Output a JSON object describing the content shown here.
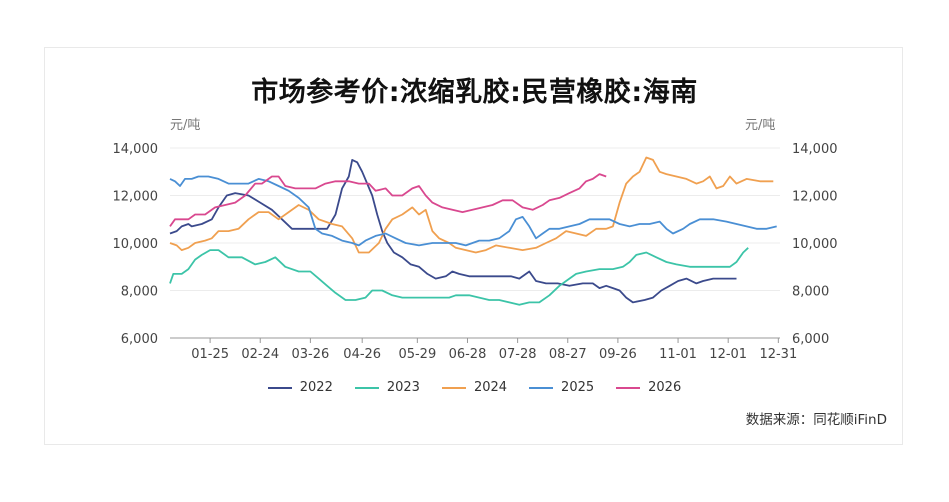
{
  "title": "市场参考价:浓缩乳胶:民营橡胶:海南",
  "source": "数据来源：同花顺iFinD",
  "chart_data": {
    "type": "line",
    "title": "市场参考价:浓缩乳胶:民营橡胶:海南",
    "y_unit_left": "元/吨",
    "y_unit_right": "元/吨",
    "ylim": [
      6000,
      14000
    ],
    "y_ticks": [
      "6,000",
      "8,000",
      "10,000",
      "12,000",
      "14,000"
    ],
    "y_tick_values": [
      6000,
      8000,
      10000,
      12000,
      14000
    ],
    "x_ticks": [
      "01-25",
      "02-24",
      "03-26",
      "04-26",
      "05-29",
      "06-28",
      "07-28",
      "08-27",
      "09-26",
      "11-01",
      "12-01",
      "12-31"
    ],
    "x_tick_days": [
      25,
      55,
      85,
      116,
      149,
      179,
      209,
      239,
      269,
      305,
      335,
      365
    ],
    "x_domain_days": [
      1,
      366
    ],
    "grid": "horizontal",
    "legend_position": "bottom",
    "series": [
      {
        "name": "2022",
        "color": "#3b4a8c",
        "points": [
          [
            1,
            10400
          ],
          [
            5,
            10500
          ],
          [
            8,
            10700
          ],
          [
            12,
            10800
          ],
          [
            14,
            10700
          ],
          [
            20,
            10800
          ],
          [
            26,
            11000
          ],
          [
            30,
            11500
          ],
          [
            35,
            12000
          ],
          [
            40,
            12100
          ],
          [
            48,
            12000
          ],
          [
            55,
            11700
          ],
          [
            62,
            11400
          ],
          [
            68,
            11000
          ],
          [
            74,
            10600
          ],
          [
            82,
            10600
          ],
          [
            88,
            10600
          ],
          [
            95,
            10600
          ],
          [
            100,
            11200
          ],
          [
            104,
            12300
          ],
          [
            108,
            12800
          ],
          [
            110,
            13500
          ],
          [
            113,
            13400
          ],
          [
            116,
            13000
          ],
          [
            119,
            12500
          ],
          [
            122,
            12000
          ],
          [
            125,
            11200
          ],
          [
            128,
            10500
          ],
          [
            131,
            10000
          ],
          [
            135,
            9600
          ],
          [
            140,
            9400
          ],
          [
            145,
            9100
          ],
          [
            150,
            9000
          ],
          [
            155,
            8700
          ],
          [
            160,
            8500
          ],
          [
            166,
            8600
          ],
          [
            170,
            8800
          ],
          [
            174,
            8700
          ],
          [
            180,
            8600
          ],
          [
            188,
            8600
          ],
          [
            195,
            8600
          ],
          [
            205,
            8600
          ],
          [
            210,
            8500
          ],
          [
            216,
            8800
          ],
          [
            220,
            8400
          ],
          [
            226,
            8300
          ],
          [
            233,
            8300
          ],
          [
            240,
            8200
          ],
          [
            248,
            8300
          ],
          [
            254,
            8300
          ],
          [
            258,
            8100
          ],
          [
            262,
            8200
          ],
          [
            266,
            8100
          ],
          [
            270,
            8000
          ],
          [
            274,
            7700
          ],
          [
            278,
            7500
          ],
          [
            285,
            7600
          ],
          [
            290,
            7700
          ],
          [
            295,
            8000
          ],
          [
            300,
            8200
          ],
          [
            305,
            8400
          ],
          [
            310,
            8500
          ],
          [
            316,
            8300
          ],
          [
            320,
            8400
          ],
          [
            326,
            8500
          ],
          [
            332,
            8500
          ],
          [
            340,
            8500
          ]
        ]
      },
      {
        "name": "2023",
        "color": "#3cc4a8",
        "points": [
          [
            1,
            8300
          ],
          [
            3,
            8700
          ],
          [
            8,
            8700
          ],
          [
            12,
            8900
          ],
          [
            16,
            9300
          ],
          [
            20,
            9500
          ],
          [
            25,
            9700
          ],
          [
            30,
            9700
          ],
          [
            36,
            9400
          ],
          [
            44,
            9400
          ],
          [
            52,
            9100
          ],
          [
            58,
            9200
          ],
          [
            64,
            9400
          ],
          [
            70,
            9000
          ],
          [
            78,
            8800
          ],
          [
            85,
            8800
          ],
          [
            90,
            8500
          ],
          [
            95,
            8200
          ],
          [
            100,
            7900
          ],
          [
            106,
            7600
          ],
          [
            112,
            7600
          ],
          [
            118,
            7700
          ],
          [
            122,
            8000
          ],
          [
            128,
            8000
          ],
          [
            134,
            7800
          ],
          [
            140,
            7700
          ],
          [
            150,
            7700
          ],
          [
            160,
            7700
          ],
          [
            168,
            7700
          ],
          [
            172,
            7800
          ],
          [
            180,
            7800
          ],
          [
            186,
            7700
          ],
          [
            192,
            7600
          ],
          [
            198,
            7600
          ],
          [
            204,
            7500
          ],
          [
            210,
            7400
          ],
          [
            216,
            7500
          ],
          [
            222,
            7500
          ],
          [
            228,
            7800
          ],
          [
            234,
            8200
          ],
          [
            238,
            8400
          ],
          [
            244,
            8700
          ],
          [
            250,
            8800
          ],
          [
            258,
            8900
          ],
          [
            266,
            8900
          ],
          [
            272,
            9000
          ],
          [
            276,
            9200
          ],
          [
            280,
            9500
          ],
          [
            286,
            9600
          ],
          [
            292,
            9400
          ],
          [
            298,
            9200
          ],
          [
            304,
            9100
          ],
          [
            312,
            9000
          ],
          [
            320,
            9000
          ],
          [
            328,
            9000
          ],
          [
            336,
            9000
          ],
          [
            340,
            9200
          ],
          [
            344,
            9600
          ],
          [
            347,
            9800
          ]
        ]
      },
      {
        "name": "2024",
        "color": "#f0a050",
        "points": [
          [
            1,
            10000
          ],
          [
            5,
            9900
          ],
          [
            8,
            9700
          ],
          [
            12,
            9800
          ],
          [
            16,
            10000
          ],
          [
            22,
            10100
          ],
          [
            26,
            10200
          ],
          [
            30,
            10500
          ],
          [
            36,
            10500
          ],
          [
            42,
            10600
          ],
          [
            48,
            11000
          ],
          [
            54,
            11300
          ],
          [
            60,
            11300
          ],
          [
            66,
            11000
          ],
          [
            72,
            11300
          ],
          [
            78,
            11600
          ],
          [
            84,
            11400
          ],
          [
            90,
            11000
          ],
          [
            98,
            10800
          ],
          [
            104,
            10700
          ],
          [
            110,
            10200
          ],
          [
            114,
            9600
          ],
          [
            120,
            9600
          ],
          [
            126,
            10000
          ],
          [
            130,
            10600
          ],
          [
            134,
            11000
          ],
          [
            140,
            11200
          ],
          [
            146,
            11500
          ],
          [
            150,
            11200
          ],
          [
            154,
            11400
          ],
          [
            158,
            10500
          ],
          [
            162,
            10200
          ],
          [
            168,
            10000
          ],
          [
            172,
            9800
          ],
          [
            178,
            9700
          ],
          [
            184,
            9600
          ],
          [
            190,
            9700
          ],
          [
            196,
            9900
          ],
          [
            204,
            9800
          ],
          [
            212,
            9700
          ],
          [
            220,
            9800
          ],
          [
            226,
            10000
          ],
          [
            232,
            10200
          ],
          [
            238,
            10500
          ],
          [
            244,
            10400
          ],
          [
            250,
            10300
          ],
          [
            256,
            10600
          ],
          [
            262,
            10600
          ],
          [
            266,
            10700
          ],
          [
            270,
            11700
          ],
          [
            274,
            12500
          ],
          [
            278,
            12800
          ],
          [
            282,
            13000
          ],
          [
            286,
            13600
          ],
          [
            290,
            13500
          ],
          [
            294,
            13000
          ],
          [
            298,
            12900
          ],
          [
            304,
            12800
          ],
          [
            310,
            12700
          ],
          [
            316,
            12500
          ],
          [
            320,
            12600
          ],
          [
            324,
            12800
          ],
          [
            328,
            12300
          ],
          [
            332,
            12400
          ],
          [
            336,
            12800
          ],
          [
            340,
            12500
          ],
          [
            346,
            12700
          ],
          [
            354,
            12600
          ],
          [
            362,
            12600
          ]
        ]
      },
      {
        "name": "2025",
        "color": "#4a8fd4",
        "points": [
          [
            1,
            12700
          ],
          [
            4,
            12600
          ],
          [
            7,
            12400
          ],
          [
            10,
            12700
          ],
          [
            14,
            12700
          ],
          [
            18,
            12800
          ],
          [
            24,
            12800
          ],
          [
            30,
            12700
          ],
          [
            36,
            12500
          ],
          [
            42,
            12500
          ],
          [
            48,
            12500
          ],
          [
            54,
            12700
          ],
          [
            60,
            12600
          ],
          [
            66,
            12400
          ],
          [
            72,
            12200
          ],
          [
            78,
            11900
          ],
          [
            84,
            11500
          ],
          [
            88,
            10600
          ],
          [
            92,
            10400
          ],
          [
            98,
            10300
          ],
          [
            104,
            10100
          ],
          [
            110,
            10000
          ],
          [
            114,
            9900
          ],
          [
            118,
            10100
          ],
          [
            124,
            10300
          ],
          [
            130,
            10400
          ],
          [
            136,
            10200
          ],
          [
            142,
            10000
          ],
          [
            150,
            9900
          ],
          [
            158,
            10000
          ],
          [
            166,
            10000
          ],
          [
            172,
            10000
          ],
          [
            178,
            9900
          ],
          [
            186,
            10100
          ],
          [
            192,
            10100
          ],
          [
            198,
            10200
          ],
          [
            204,
            10500
          ],
          [
            208,
            11000
          ],
          [
            212,
            11100
          ],
          [
            216,
            10700
          ],
          [
            220,
            10200
          ],
          [
            224,
            10400
          ],
          [
            228,
            10600
          ],
          [
            234,
            10600
          ],
          [
            240,
            10700
          ],
          [
            246,
            10800
          ],
          [
            252,
            11000
          ],
          [
            258,
            11000
          ],
          [
            264,
            11000
          ],
          [
            270,
            10800
          ],
          [
            276,
            10700
          ],
          [
            282,
            10800
          ],
          [
            288,
            10800
          ],
          [
            294,
            10900
          ],
          [
            298,
            10600
          ],
          [
            302,
            10400
          ],
          [
            308,
            10600
          ],
          [
            312,
            10800
          ],
          [
            318,
            11000
          ],
          [
            326,
            11000
          ],
          [
            334,
            10900
          ],
          [
            340,
            10800
          ],
          [
            346,
            10700
          ],
          [
            352,
            10600
          ],
          [
            358,
            10600
          ],
          [
            364,
            10700
          ]
        ]
      },
      {
        "name": "2026",
        "color": "#d9488f",
        "points": [
          [
            1,
            10700
          ],
          [
            4,
            11000
          ],
          [
            8,
            11000
          ],
          [
            12,
            11000
          ],
          [
            16,
            11200
          ],
          [
            22,
            11200
          ],
          [
            28,
            11500
          ],
          [
            34,
            11600
          ],
          [
            40,
            11700
          ],
          [
            46,
            12000
          ],
          [
            52,
            12500
          ],
          [
            56,
            12500
          ],
          [
            62,
            12800
          ],
          [
            66,
            12800
          ],
          [
            70,
            12400
          ],
          [
            76,
            12300
          ],
          [
            82,
            12300
          ],
          [
            88,
            12300
          ],
          [
            94,
            12500
          ],
          [
            100,
            12600
          ],
          [
            108,
            12600
          ],
          [
            114,
            12500
          ],
          [
            120,
            12500
          ],
          [
            124,
            12200
          ],
          [
            130,
            12300
          ],
          [
            134,
            12000
          ],
          [
            140,
            12000
          ],
          [
            146,
            12300
          ],
          [
            150,
            12400
          ],
          [
            154,
            12000
          ],
          [
            158,
            11700
          ],
          [
            164,
            11500
          ],
          [
            170,
            11400
          ],
          [
            176,
            11300
          ],
          [
            182,
            11400
          ],
          [
            188,
            11500
          ],
          [
            194,
            11600
          ],
          [
            200,
            11800
          ],
          [
            206,
            11800
          ],
          [
            212,
            11500
          ],
          [
            218,
            11400
          ],
          [
            224,
            11600
          ],
          [
            228,
            11800
          ],
          [
            234,
            11900
          ],
          [
            240,
            12100
          ],
          [
            246,
            12300
          ],
          [
            250,
            12600
          ],
          [
            254,
            12700
          ],
          [
            258,
            12900
          ],
          [
            262,
            12800
          ]
        ]
      }
    ]
  }
}
